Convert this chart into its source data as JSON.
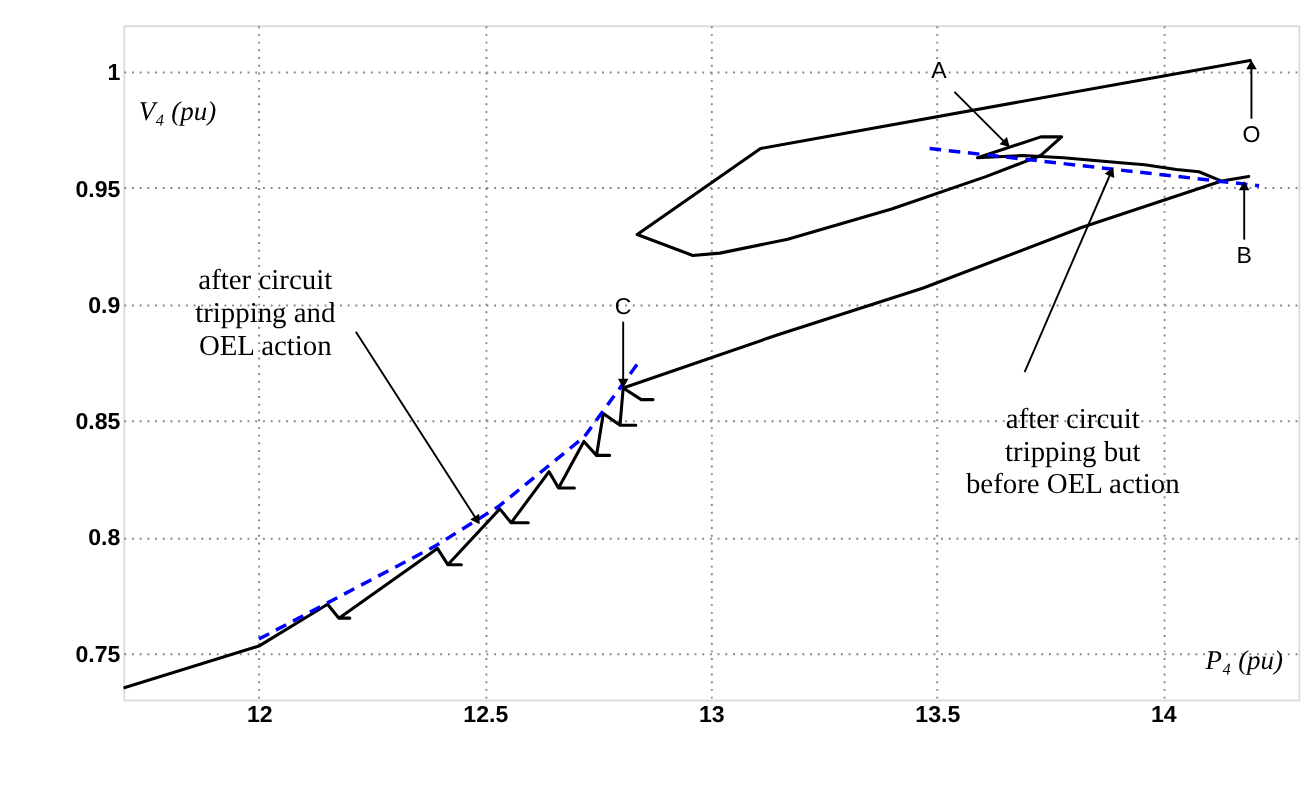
{
  "chart_data": {
    "type": "line",
    "xlabel": "P₄ (pu)",
    "ylabel": "V₄ (pu)",
    "xlim": [
      11.7,
      14.3
    ],
    "ylim": [
      0.73,
      1.02
    ],
    "xticks": [
      12,
      12.5,
      13,
      13.5,
      14
    ],
    "yticks": [
      0.75,
      0.8,
      0.85,
      0.9,
      0.95,
      1
    ],
    "grid": true,
    "marker": "none",
    "series": [
      {
        "color": "#000000",
        "line_style": "solid",
        "x": [
          11.7,
          12.0,
          12.152,
          12.177,
          12.201,
          12.177,
          12.395,
          12.418,
          12.448,
          12.418,
          12.533,
          12.558,
          12.596,
          12.558,
          12.642,
          12.663,
          12.698,
          12.663,
          12.719,
          12.747,
          12.776,
          12.747,
          12.762,
          12.799,
          12.834,
          12.799,
          12.806,
          12.846,
          12.872,
          12.846,
          12.806,
          13.15,
          13.47,
          13.82,
          14.13,
          14.19,
          14.13,
          14.08,
          14.03,
          13.96,
          13.9,
          13.78,
          13.69,
          13.59,
          13.73,
          13.776,
          13.73,
          13.61,
          13.4,
          13.17,
          13.02,
          12.96,
          12.837,
          13.11,
          14.196
        ],
        "values": [
          0.735,
          0.753,
          0.771,
          0.765,
          0.765,
          0.765,
          0.795,
          0.788,
          0.788,
          0.788,
          0.812,
          0.806,
          0.806,
          0.806,
          0.828,
          0.821,
          0.821,
          0.821,
          0.841,
          0.835,
          0.835,
          0.835,
          0.853,
          0.848,
          0.848,
          0.848,
          0.864,
          0.859,
          0.859,
          0.859,
          0.864,
          0.887,
          0.907,
          0.933,
          0.953,
          0.955,
          0.953,
          0.957,
          0.958,
          0.96,
          0.961,
          0.963,
          0.964,
          0.963,
          0.972,
          0.972,
          0.964,
          0.955,
          0.941,
          0.928,
          0.922,
          0.921,
          0.93,
          0.967,
          1.005
        ]
      },
      {
        "color": "#0000ff",
        "line_style": "dashed",
        "x": [
          12.0,
          12.39,
          12.53,
          12.72,
          12.84
        ],
        "values": [
          0.756,
          0.796,
          0.813,
          0.843,
          0.875
        ]
      },
      {
        "color": "#0000ff",
        "line_style": "dashed",
        "x": [
          13.484,
          14.213
        ],
        "values": [
          0.967,
          0.951
        ]
      }
    ],
    "annotations": [
      {
        "text": "A",
        "x": 13.654,
        "y": 0.969
      },
      {
        "text": "O",
        "x": 14.196,
        "y": 1.003
      },
      {
        "text": "B",
        "x": 14.18,
        "y": 0.951
      },
      {
        "text": "C",
        "x": 12.806,
        "y": 0.866
      },
      {
        "text": "after circuit\ntripping and\nOEL action",
        "x": 12.483,
        "y": 0.807
      },
      {
        "text": "after circuit\ntripping but\nbefore OEL action",
        "x": 13.886,
        "y": 0.957
      }
    ]
  }
}
